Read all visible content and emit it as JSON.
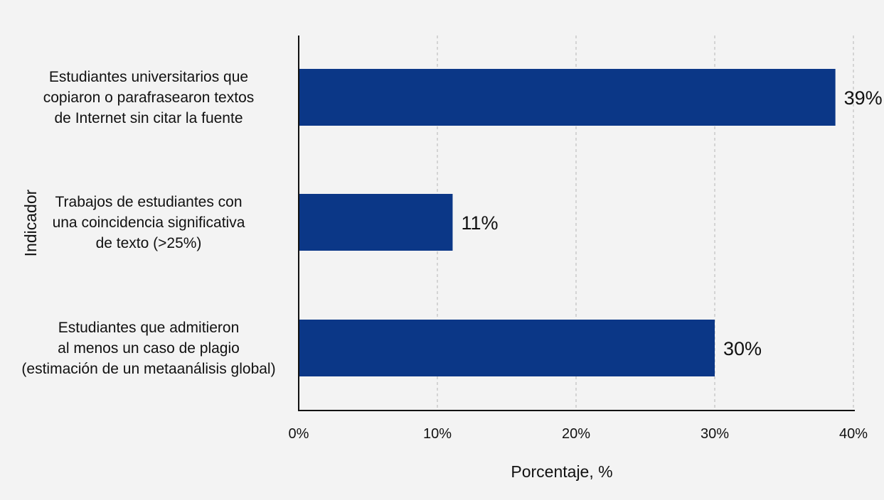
{
  "chart_data": {
    "type": "bar",
    "orientation": "horizontal",
    "categories": [
      [
        "Estudiantes universitarios que",
        "copiaron o parafrasearon textos",
        "de Internet sin citar la fuente"
      ],
      [
        "Trabajos de estudiantes con",
        "una coincidencia significativa",
        "de texto (>25%)"
      ],
      [
        "Estudiantes que admitieron",
        "al menos un caso de plagio",
        "(estimación de un metaanálisis global)"
      ]
    ],
    "values": [
      38.7,
      11.1,
      30
    ],
    "data_labels": [
      "39%",
      "11%",
      "30%"
    ],
    "xlabel": "Porcentaje, %",
    "ylabel": "Indicador",
    "xlim": [
      0,
      40
    ],
    "xticks": [
      0,
      10,
      20,
      30,
      40
    ],
    "xtick_labels": [
      "0%",
      "10%",
      "20%",
      "30%",
      "40%"
    ],
    "grid": "vertical dashed",
    "colors": {
      "bar": "#0b3787",
      "axis": "#111111",
      "grid": "#b5b5b5",
      "text": "#111111"
    }
  }
}
